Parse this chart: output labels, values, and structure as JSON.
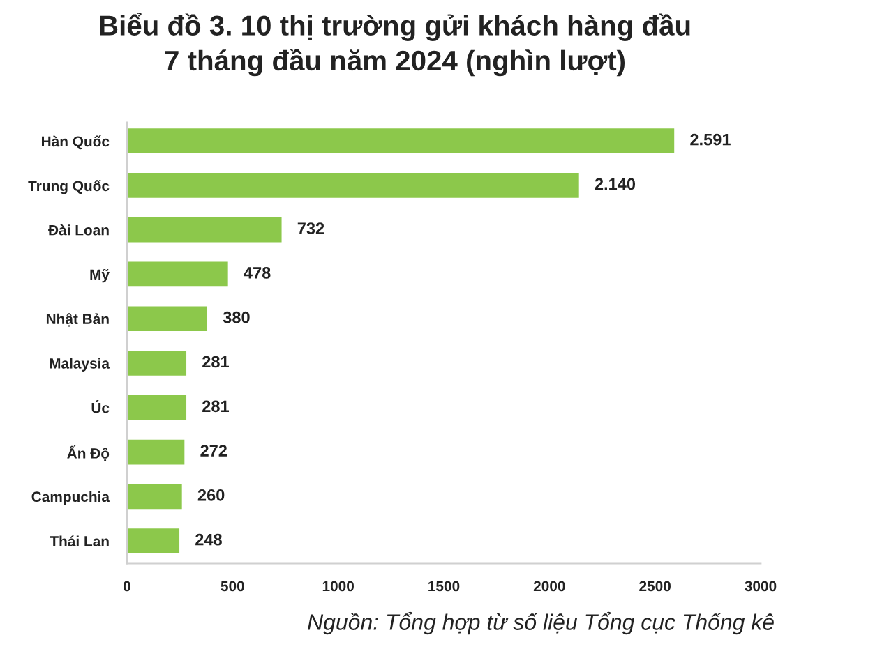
{
  "chart_data": {
    "type": "bar",
    "orientation": "horizontal",
    "title": "Biểu đồ 3. 10 thị trường gửi khách hàng đầu\n7 tháng đầu năm 2024 (nghìn lượt)",
    "categories": [
      "Hàn Quốc",
      "Trung Quốc",
      "Đài Loan",
      "Mỹ",
      "Nhật Bản",
      "Malaysia",
      "Úc",
      "Ấn Độ",
      "Campuchia",
      "Thái Lan"
    ],
    "values": [
      2591,
      2140,
      732,
      478,
      380,
      281,
      281,
      272,
      260,
      248
    ],
    "value_labels": [
      "2.591",
      "2.140",
      "732",
      "478",
      "380",
      "281",
      "281",
      "272",
      "260",
      "248"
    ],
    "color": "#8cc84b",
    "xlim": [
      0,
      3000
    ],
    "xticks": [
      0,
      500,
      1000,
      1500,
      2000,
      2500,
      3000
    ],
    "grid": false,
    "legend": false,
    "annotations": [
      "Nguồn: Tổng hợp từ số liệu Tổng cục Thống kê"
    ]
  }
}
